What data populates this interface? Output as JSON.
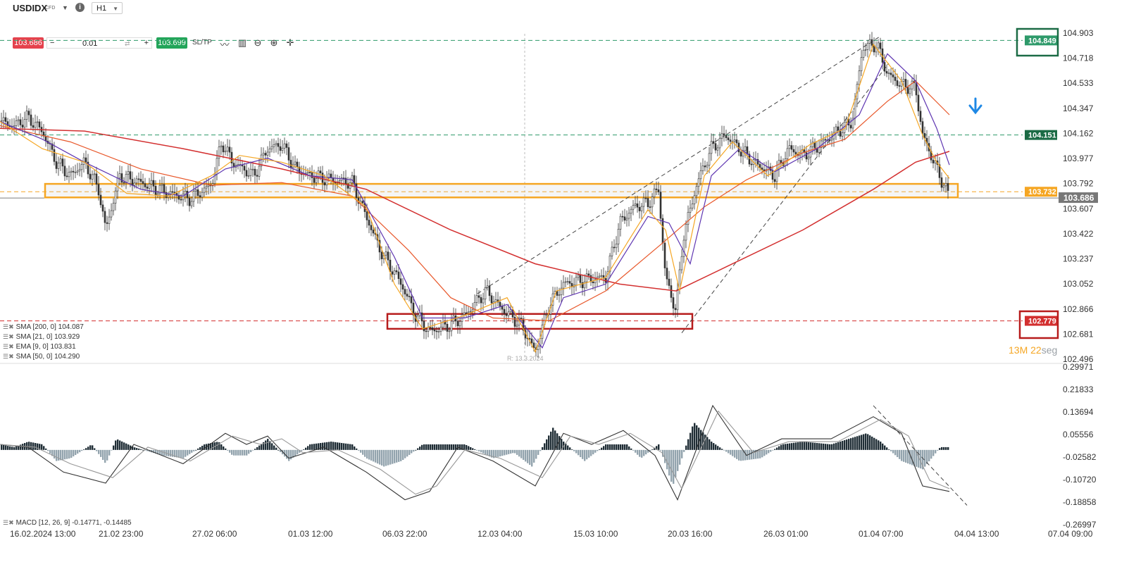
{
  "toolbar": {
    "symbol": "USDIDX",
    "symbol_type": "CFD",
    "timeframe": "H1",
    "bid_price": "103.686",
    "volume": "0.01",
    "ask_price": "103.699",
    "sltp_label": "SL/TP",
    "minus_label": "−",
    "plus_label": "+",
    "info_label": "i"
  },
  "colors": {
    "bullish": "#23a55a",
    "bearish": "#e5424d",
    "resistance_box": "#f5a623",
    "support_box": "#b71c1c",
    "sma200": "#d32f2f",
    "sma21": "#5e35b1",
    "ema9": "#f5a623",
    "sma50": "#e8572a",
    "arrow": "#1e88e5"
  },
  "price_labels": {
    "last": "103.686",
    "resistance_dash": "103.732",
    "green_mid": "104.151",
    "green_top": "104.849",
    "red_support": "102.779"
  },
  "timer": {
    "minutes": "13",
    "m_unit": "M",
    "seconds": "22",
    "s_unit": "seg"
  },
  "ruler_text": "R: 13.3.2024",
  "indicators": {
    "sma200": "SMA [200, 0] 104.087",
    "sma21": "SMA [21, 0] 103.929",
    "ema9": "EMA [9, 0] 103.831",
    "sma50": "SMA [50, 0] 104.290",
    "macd": "MACD [12, 26, 9] -0.14771, -0.14485"
  },
  "chart_data": [
    {
      "type": "candlestick",
      "title": "USDIDX H1",
      "price_axis": [
        "104.903",
        "104.718",
        "104.533",
        "104.347",
        "104.162",
        "103.977",
        "103.792",
        "103.607",
        "103.422",
        "103.237",
        "103.052",
        "102.866",
        "102.681",
        "102.496"
      ],
      "ylim": [
        102.496,
        104.903
      ],
      "time_axis": [
        "16.02.2024 13:00",
        "21.02 23:00",
        "27.02 06:00",
        "01.03 12:00",
        "06.03 22:00",
        "12.03 04:00",
        "15.03 10:00",
        "20.03 16:00",
        "26.03 01:00",
        "01.04 07:00",
        "04.04 13:00",
        "07.04 09:00"
      ],
      "close_path": [
        [
          0,
          104.25
        ],
        [
          20,
          104.22
        ],
        [
          40,
          104.28
        ],
        [
          60,
          104.18
        ],
        [
          80,
          103.95
        ],
        [
          100,
          103.85
        ],
        [
          120,
          103.95
        ],
        [
          140,
          103.75
        ],
        [
          150,
          103.45
        ],
        [
          170,
          103.85
        ],
        [
          200,
          103.8
        ],
        [
          240,
          103.72
        ],
        [
          270,
          103.68
        ],
        [
          300,
          103.78
        ],
        [
          315,
          104.1
        ],
        [
          330,
          103.95
        ],
        [
          360,
          103.85
        ],
        [
          380,
          104.05
        ],
        [
          400,
          104.08
        ],
        [
          420,
          103.9
        ],
        [
          440,
          103.85
        ],
        [
          470,
          103.82
        ],
        [
          500,
          103.8
        ],
        [
          520,
          103.55
        ],
        [
          540,
          103.3
        ],
        [
          570,
          103.05
        ],
        [
          590,
          102.82
        ],
        [
          610,
          102.7
        ],
        [
          640,
          102.75
        ],
        [
          660,
          102.82
        ],
        [
          690,
          103.0
        ],
        [
          710,
          102.88
        ],
        [
          740,
          102.75
        ],
        [
          760,
          102.55
        ],
        [
          780,
          102.9
        ],
        [
          800,
          103.05
        ],
        [
          830,
          103.08
        ],
        [
          860,
          103.1
        ],
        [
          880,
          103.5
        ],
        [
          900,
          103.62
        ],
        [
          920,
          103.65
        ],
        [
          935,
          103.75
        ],
        [
          945,
          103.1
        ],
        [
          960,
          102.85
        ],
        [
          970,
          103.4
        ],
        [
          990,
          103.8
        ],
        [
          1010,
          104.05
        ],
        [
          1030,
          104.15
        ],
        [
          1050,
          104.05
        ],
        [
          1070,
          103.95
        ],
        [
          1100,
          103.85
        ],
        [
          1120,
          104.05
        ],
        [
          1140,
          104.0
        ],
        [
          1170,
          104.1
        ],
        [
          1190,
          104.18
        ],
        [
          1210,
          104.25
        ],
        [
          1225,
          104.8
        ],
        [
          1245,
          104.82
        ],
        [
          1260,
          104.6
        ],
        [
          1280,
          104.52
        ],
        [
          1300,
          104.5
        ],
        [
          1310,
          104.15
        ],
        [
          1330,
          103.9
        ],
        [
          1348,
          103.69
        ]
      ],
      "sma200_path": [
        [
          0,
          104.2
        ],
        [
          120,
          104.18
        ],
        [
          260,
          104.05
        ],
        [
          400,
          103.9
        ],
        [
          520,
          103.75
        ],
        [
          640,
          103.45
        ],
        [
          760,
          103.2
        ],
        [
          880,
          103.05
        ],
        [
          960,
          103.0
        ],
        [
          1040,
          103.2
        ],
        [
          1140,
          103.45
        ],
        [
          1240,
          103.75
        ],
        [
          1300,
          103.95
        ],
        [
          1348,
          104.03
        ]
      ],
      "sma50_path": [
        [
          0,
          104.22
        ],
        [
          100,
          104.1
        ],
        [
          200,
          103.9
        ],
        [
          300,
          103.78
        ],
        [
          400,
          103.8
        ],
        [
          500,
          103.7
        ],
        [
          580,
          103.3
        ],
        [
          640,
          102.95
        ],
        [
          700,
          102.8
        ],
        [
          780,
          102.78
        ],
        [
          860,
          103.0
        ],
        [
          940,
          103.35
        ],
        [
          1000,
          103.62
        ],
        [
          1060,
          103.82
        ],
        [
          1140,
          104.02
        ],
        [
          1200,
          104.12
        ],
        [
          1260,
          104.4
        ],
        [
          1300,
          104.55
        ],
        [
          1348,
          104.3
        ]
      ],
      "sma21_path": [
        [
          0,
          104.25
        ],
        [
          60,
          104.12
        ],
        [
          120,
          103.95
        ],
        [
          200,
          103.75
        ],
        [
          260,
          103.7
        ],
        [
          320,
          103.9
        ],
        [
          380,
          103.98
        ],
        [
          440,
          103.85
        ],
        [
          500,
          103.82
        ],
        [
          560,
          103.25
        ],
        [
          600,
          102.8
        ],
        [
          660,
          102.8
        ],
        [
          720,
          102.9
        ],
        [
          770,
          102.58
        ],
        [
          800,
          102.95
        ],
        [
          860,
          103.05
        ],
        [
          920,
          103.55
        ],
        [
          950,
          103.5
        ],
        [
          980,
          103.2
        ],
        [
          1010,
          103.85
        ],
        [
          1050,
          104.05
        ],
        [
          1100,
          103.88
        ],
        [
          1160,
          104.05
        ],
        [
          1220,
          104.3
        ],
        [
          1260,
          104.75
        ],
        [
          1300,
          104.55
        ],
        [
          1330,
          104.2
        ],
        [
          1348,
          103.93
        ]
      ],
      "ema9_path": [
        [
          0,
          104.25
        ],
        [
          60,
          104.05
        ],
        [
          120,
          103.95
        ],
        [
          180,
          103.72
        ],
        [
          240,
          103.7
        ],
        [
          300,
          103.85
        ],
        [
          340,
          104.0
        ],
        [
          400,
          103.95
        ],
        [
          460,
          103.85
        ],
        [
          520,
          103.62
        ],
        [
          560,
          103.05
        ],
        [
          600,
          102.72
        ],
        [
          660,
          102.82
        ],
        [
          720,
          102.95
        ],
        [
          760,
          102.55
        ],
        [
          790,
          103.0
        ],
        [
          860,
          103.1
        ],
        [
          920,
          103.6
        ],
        [
          945,
          103.45
        ],
        [
          965,
          103.0
        ],
        [
          1000,
          103.85
        ],
        [
          1040,
          104.1
        ],
        [
          1090,
          103.85
        ],
        [
          1150,
          104.08
        ],
        [
          1200,
          104.2
        ],
        [
          1240,
          104.82
        ],
        [
          1280,
          104.55
        ],
        [
          1310,
          104.15
        ],
        [
          1330,
          103.95
        ],
        [
          1348,
          103.83
        ]
      ],
      "zones": [
        {
          "name": "resistance",
          "from": 103.69,
          "to": 103.79,
          "x_start": 64,
          "x_end": 1360
        },
        {
          "name": "support",
          "from": 102.72,
          "to": 102.83,
          "x_start": 550,
          "x_end": 983
        }
      ],
      "trend_lines": [
        {
          "from": [
            678,
            102.98
          ],
          "to": [
            1250,
            104.88
          ]
        },
        {
          "from": [
            968,
            102.69
          ],
          "to": [
            1262,
            104.68
          ]
        }
      ]
    },
    {
      "type": "bar",
      "title": "MACD [12, 26, 9]",
      "price_axis": [
        "0.29971",
        "0.21833",
        "0.13694",
        "0.05556",
        "-0.02582",
        "-0.10720",
        "-0.18858",
        "-0.26997"
      ],
      "ylim": [
        -0.26997,
        0.29971
      ],
      "histogram": [
        [
          0,
          0.02
        ],
        [
          20,
          0.01
        ],
        [
          40,
          0.03
        ],
        [
          60,
          0.02
        ],
        [
          80,
          -0.04
        ],
        [
          100,
          -0.03
        ],
        [
          130,
          0.02
        ],
        [
          150,
          -0.05
        ],
        [
          165,
          0.04
        ],
        [
          190,
          0.01
        ],
        [
          230,
          -0.02
        ],
        [
          260,
          -0.03
        ],
        [
          290,
          0.02
        ],
        [
          310,
          0.03
        ],
        [
          330,
          -0.02
        ],
        [
          350,
          -0.02
        ],
        [
          380,
          0.04
        ],
        [
          410,
          -0.04
        ],
        [
          440,
          0.02
        ],
        [
          470,
          0.03
        ],
        [
          500,
          0.02
        ],
        [
          520,
          -0.03
        ],
        [
          545,
          -0.06
        ],
        [
          570,
          -0.04
        ],
        [
          600,
          0.02
        ],
        [
          630,
          0.02
        ],
        [
          660,
          0.02
        ],
        [
          700,
          -0.03
        ],
        [
          730,
          -0.01
        ],
        [
          755,
          -0.06
        ],
        [
          785,
          0.08
        ],
        [
          800,
          0.03
        ],
        [
          830,
          -0.04
        ],
        [
          860,
          0.02
        ],
        [
          890,
          0.02
        ],
        [
          910,
          -0.03
        ],
        [
          935,
          0.02
        ],
        [
          955,
          -0.13
        ],
        [
          985,
          0.1
        ],
        [
          1010,
          0.03
        ],
        [
          1050,
          -0.04
        ],
        [
          1080,
          -0.03
        ],
        [
          1110,
          0.02
        ],
        [
          1140,
          0.03
        ],
        [
          1180,
          0.02
        ],
        [
          1230,
          0.06
        ],
        [
          1250,
          0.03
        ],
        [
          1280,
          -0.04
        ],
        [
          1310,
          -0.07
        ],
        [
          1335,
          0.01
        ],
        [
          1348,
          0.01
        ]
      ],
      "macd_path": [
        [
          0,
          0.02
        ],
        [
          40,
          0.01
        ],
        [
          90,
          -0.08
        ],
        [
          150,
          -0.12
        ],
        [
          190,
          0.02
        ],
        [
          260,
          -0.05
        ],
        [
          320,
          0.06
        ],
        [
          350,
          0.02
        ],
        [
          380,
          0.05
        ],
        [
          410,
          -0.03
        ],
        [
          460,
          0.01
        ],
        [
          520,
          -0.08
        ],
        [
          575,
          -0.18
        ],
        [
          610,
          -0.15
        ],
        [
          650,
          0.01
        ],
        [
          700,
          -0.04
        ],
        [
          760,
          -0.13
        ],
        [
          800,
          0.06
        ],
        [
          840,
          0.02
        ],
        [
          885,
          0.07
        ],
        [
          930,
          -0.02
        ],
        [
          962,
          -0.18
        ],
        [
          1012,
          0.16
        ],
        [
          1060,
          -0.02
        ],
        [
          1110,
          0.04
        ],
        [
          1180,
          0.04
        ],
        [
          1240,
          0.12
        ],
        [
          1280,
          0.06
        ],
        [
          1310,
          -0.13
        ],
        [
          1348,
          -0.15
        ]
      ],
      "signal_path": [
        [
          0,
          0.02
        ],
        [
          50,
          0.01
        ],
        [
          100,
          -0.05
        ],
        [
          160,
          -0.1
        ],
        [
          210,
          0.01
        ],
        [
          270,
          -0.04
        ],
        [
          330,
          0.05
        ],
        [
          370,
          0.02
        ],
        [
          400,
          0.04
        ],
        [
          430,
          -0.01
        ],
        [
          480,
          0.0
        ],
        [
          540,
          -0.07
        ],
        [
          590,
          -0.16
        ],
        [
          620,
          -0.13
        ],
        [
          660,
          0.0
        ],
        [
          710,
          -0.03
        ],
        [
          770,
          -0.1
        ],
        [
          810,
          0.05
        ],
        [
          850,
          0.02
        ],
        [
          895,
          0.06
        ],
        [
          940,
          -0.01
        ],
        [
          968,
          -0.14
        ],
        [
          1020,
          0.14
        ],
        [
          1070,
          -0.01
        ],
        [
          1120,
          0.03
        ],
        [
          1190,
          0.03
        ],
        [
          1250,
          0.11
        ],
        [
          1290,
          0.05
        ],
        [
          1320,
          -0.11
        ],
        [
          1348,
          -0.14
        ]
      ],
      "trend_line": {
        "from": [
          1240,
          0.16
        ],
        "to": [
          1373,
          -0.2
        ]
      }
    }
  ]
}
